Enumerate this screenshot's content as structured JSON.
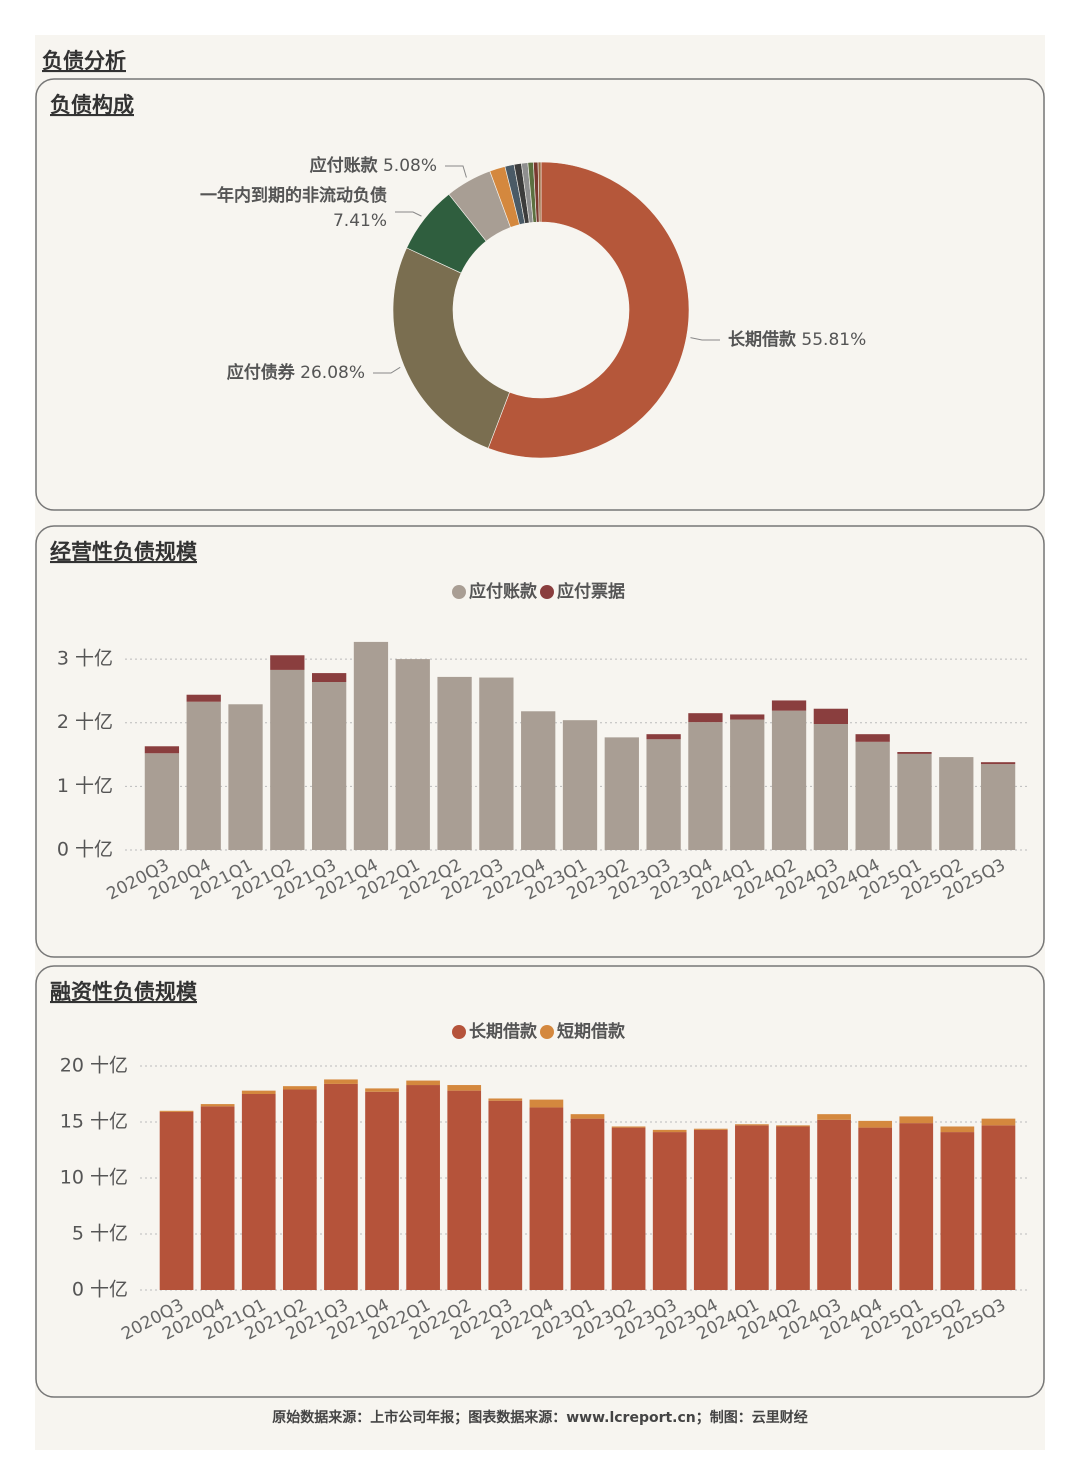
{
  "header": {
    "title": "负债分析"
  },
  "footer": "原始数据来源：上市公司年报；图表数据来源：www.lcreport.cn；制图：云里财经",
  "chart_data": [
    {
      "type": "donut",
      "title": "负债构成",
      "categories": [
        "长期借款",
        "应付债券",
        "一年内到期的非流动负债",
        "应付账款",
        null,
        null,
        null,
        null,
        null,
        null,
        null
      ],
      "values": [
        55.81,
        26.08,
        7.41,
        5.08,
        1.7,
        1.0,
        0.8,
        0.7,
        0.6,
        0.5,
        0.32
      ],
      "value_labels": [
        "55.81%",
        "26.08%",
        "7.41%",
        "5.08%",
        null,
        null,
        null,
        null,
        null,
        null,
        null
      ],
      "colors": [
        "#b5573a",
        "#7a6e50",
        "#2f5e3e",
        "#a89e94",
        "#d4883e",
        "#4a5a66",
        "#3c3c3c",
        "#8f8f8f",
        "#5c7040",
        "#7a3a30",
        "#9a6a40"
      ]
    },
    {
      "type": "bar",
      "stacked": true,
      "title": "经营性负债规模",
      "grid": true,
      "categories": [
        "2020Q3",
        "2020Q4",
        "2021Q1",
        "2021Q2",
        "2021Q3",
        "2021Q4",
        "2022Q1",
        "2022Q2",
        "2022Q3",
        "2022Q4",
        "2023Q1",
        "2023Q2",
        "2023Q3",
        "2023Q4",
        "2024Q1",
        "2024Q2",
        "2024Q3",
        "2024Q4",
        "2025Q1",
        "2025Q2",
        "2025Q3"
      ],
      "series": [
        {
          "name": "应付账款",
          "color": "#a99e94",
          "values": [
            1.52,
            2.33,
            2.29,
            2.83,
            2.64,
            3.27,
            3.0,
            2.72,
            2.71,
            2.18,
            2.04,
            1.77,
            1.74,
            2.01,
            2.05,
            2.19,
            1.98,
            1.7,
            1.51,
            1.46,
            1.35
          ]
        },
        {
          "name": "应付票据",
          "color": "#8a3e3e",
          "values": [
            0.11,
            0.11,
            0,
            0.23,
            0.14,
            0,
            0,
            0,
            0,
            0,
            0,
            0,
            0.08,
            0.14,
            0.08,
            0.16,
            0.24,
            0.12,
            0.03,
            0,
            0.03
          ]
        }
      ],
      "ylim": [
        0,
        3.3
      ],
      "yticks": [
        {
          "value": 0,
          "label": "0 十亿"
        },
        {
          "value": 1,
          "label": "1 十亿"
        },
        {
          "value": 2,
          "label": "2 十亿"
        },
        {
          "value": 3,
          "label": "3 十亿"
        }
      ]
    },
    {
      "type": "bar",
      "stacked": true,
      "title": "融资性负债规模",
      "grid": true,
      "categories": [
        "2020Q3",
        "2020Q4",
        "2021Q1",
        "2021Q2",
        "2021Q3",
        "2021Q4",
        "2022Q1",
        "2022Q2",
        "2022Q3",
        "2022Q4",
        "2023Q1",
        "2023Q2",
        "2023Q3",
        "2023Q4",
        "2024Q1",
        "2024Q2",
        "2024Q3",
        "2024Q4",
        "2025Q1",
        "2025Q2",
        "2025Q3"
      ],
      "series": [
        {
          "name": "长期借款",
          "color": "#b5533a",
          "values": [
            15.9,
            16.4,
            17.5,
            17.9,
            18.4,
            17.7,
            18.3,
            17.8,
            16.9,
            16.3,
            15.3,
            14.5,
            14.1,
            14.3,
            14.7,
            14.6,
            15.2,
            14.5,
            14.9,
            14.1,
            14.7
          ]
        },
        {
          "name": "短期借款",
          "color": "#d4883e",
          "values": [
            0.1,
            0.2,
            0.3,
            0.3,
            0.4,
            0.3,
            0.4,
            0.5,
            0.2,
            0.7,
            0.4,
            0.1,
            0.2,
            0.1,
            0.1,
            0.1,
            0.5,
            0.6,
            0.6,
            0.5,
            0.6
          ]
        }
      ],
      "ylim": [
        0,
        20
      ],
      "yticks": [
        {
          "value": 0,
          "label": "0 十亿"
        },
        {
          "value": 5,
          "label": "5 十亿"
        },
        {
          "value": 10,
          "label": "10 十亿"
        },
        {
          "value": 15,
          "label": "15 十亿"
        },
        {
          "value": 20,
          "label": "20 十亿"
        }
      ]
    }
  ]
}
